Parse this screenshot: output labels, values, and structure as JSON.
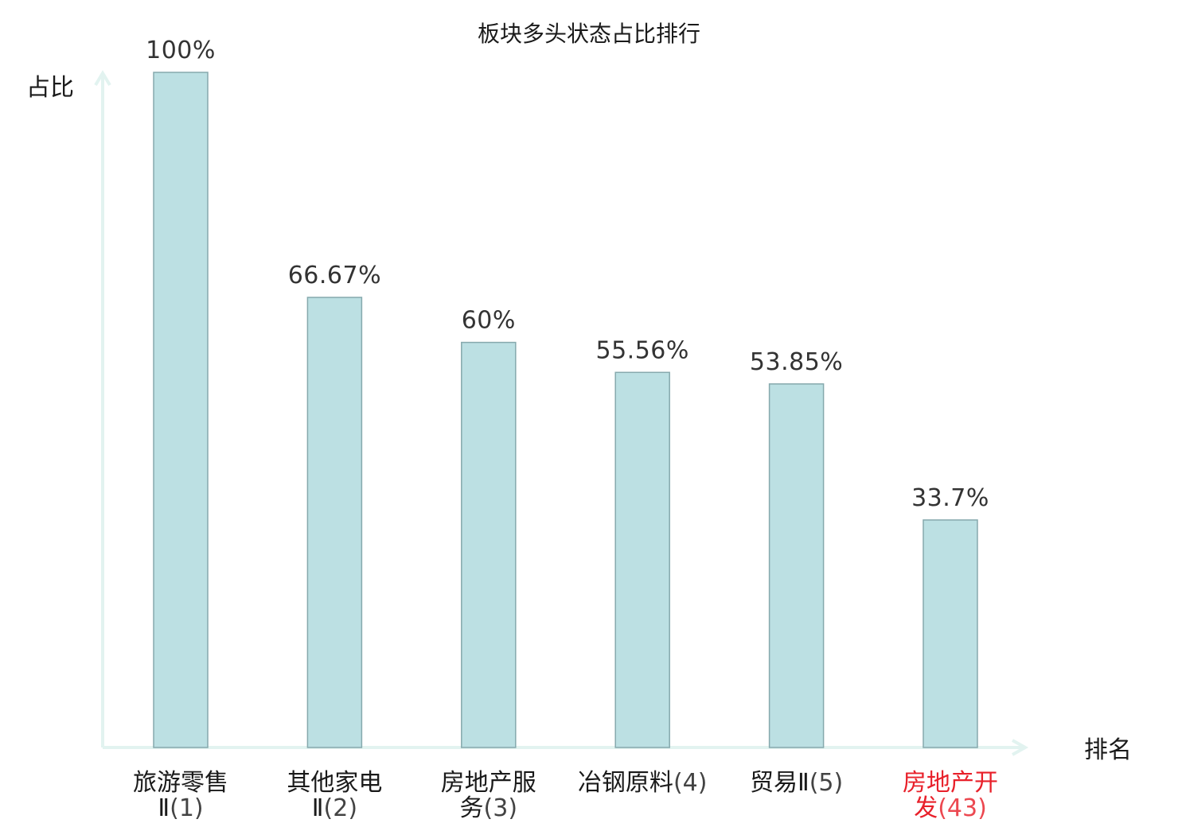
{
  "chart_data": {
    "type": "bar",
    "title": "板块多头状态占比排行",
    "ylabel": "占比",
    "xlabel": "排名",
    "ylim": [
      0,
      100
    ],
    "grid": false,
    "categories": [
      {
        "name_lines": [
          "旅游零售",
          "Ⅱ"
        ],
        "rank": "(1)",
        "highlight": false
      },
      {
        "name_lines": [
          "其他家电",
          "Ⅱ"
        ],
        "rank": "(2)",
        "highlight": false
      },
      {
        "name_lines": [
          "房地产服",
          "务"
        ],
        "rank": "(3)",
        "highlight": false
      },
      {
        "name_lines": [
          "冶钢原料"
        ],
        "rank": "(4)",
        "highlight": false
      },
      {
        "name_lines": [
          "贸易Ⅱ"
        ],
        "rank": "(5)",
        "highlight": false
      },
      {
        "name_lines": [
          "房地产开",
          "发"
        ],
        "rank": "(43)",
        "highlight": true
      }
    ],
    "values": [
      100,
      66.67,
      60,
      55.56,
      53.85,
      33.7
    ],
    "value_labels": [
      "100%",
      "66.67%",
      "60%",
      "55.56%",
      "53.85%",
      "33.7%"
    ],
    "colors": {
      "bar_fill": "#bce0e3",
      "bar_stroke": "#86a9ad",
      "axis": "#e2f3f0",
      "highlight_text": "#e8202a",
      "text": "#1a1a1a"
    }
  }
}
